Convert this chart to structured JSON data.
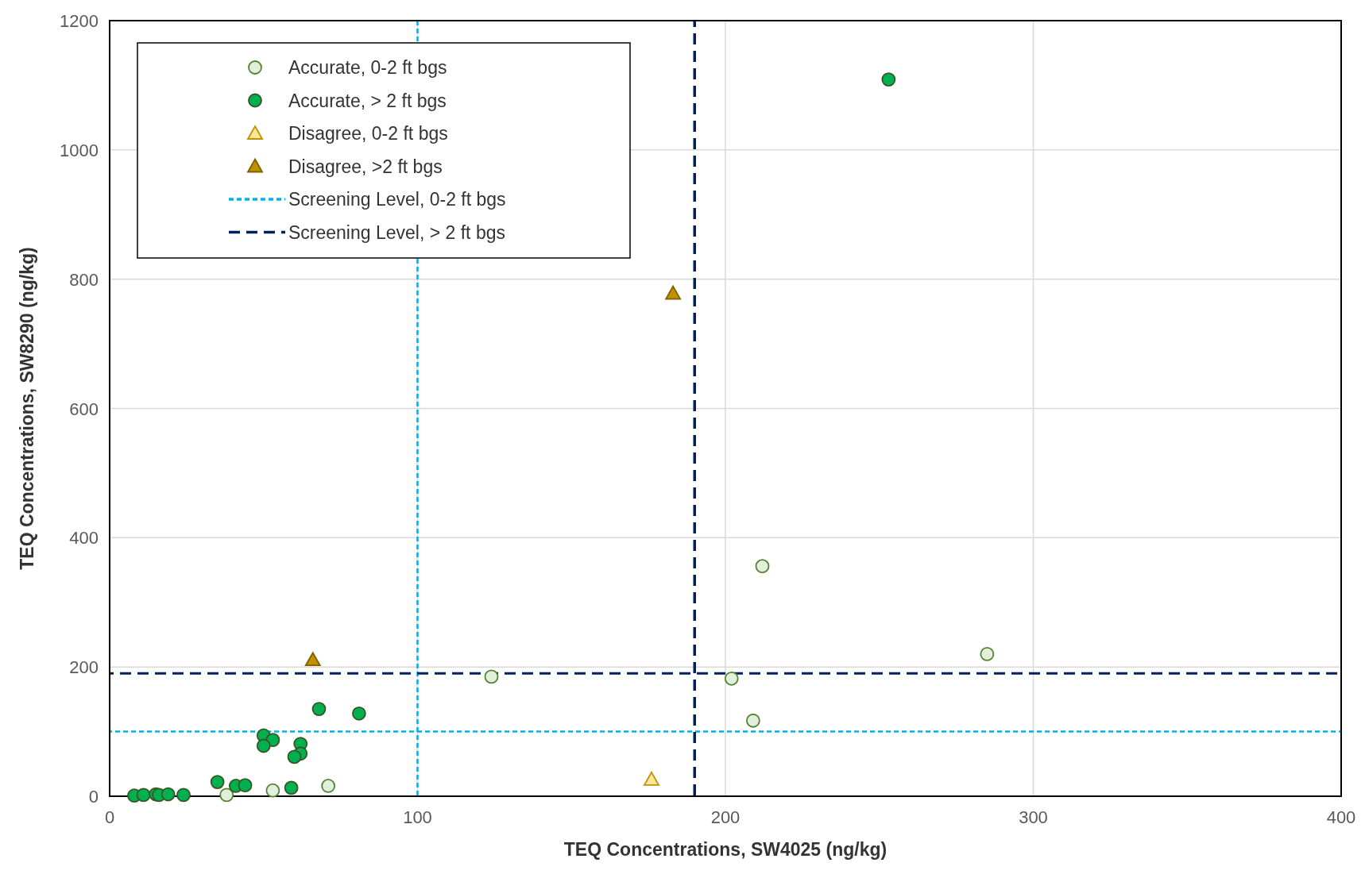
{
  "chart_data": {
    "type": "scatter",
    "xlabel": "TEQ Concentrations, SW4025 (ng/kg)",
    "ylabel": "TEQ Concentrations, SW8290 (ng/kg)",
    "xlim": [
      0,
      400
    ],
    "ylim": [
      0,
      1200
    ],
    "xticks": [
      0,
      100,
      200,
      300,
      400
    ],
    "yticks": [
      0,
      200,
      400,
      600,
      800,
      1000,
      1200
    ],
    "grid": true,
    "legend": "top left",
    "series": [
      {
        "name": "Accurate, 0-2 ft bgs",
        "color": "#e2efda",
        "marker": "circle",
        "x": [
          38,
          53,
          71,
          124,
          202,
          209,
          212,
          285
        ],
        "values": [
          2,
          9,
          16,
          185,
          182,
          117,
          356,
          220
        ]
      },
      {
        "name": "Accurate, > 2 ft bgs",
        "color": "#00b050",
        "marker": "circle",
        "x": [
          8,
          11,
          15,
          16,
          19,
          24,
          35,
          41,
          44,
          50,
          53,
          50,
          62,
          62,
          60,
          59,
          68,
          81,
          253
        ],
        "values": [
          1,
          2,
          3,
          2,
          3,
          2,
          22,
          16,
          17,
          94,
          87,
          78,
          81,
          66,
          61,
          13,
          135,
          128,
          1109
        ]
      },
      {
        "name": "Disagree, 0-2 ft bgs",
        "color": "#ffe699",
        "marker": "triangle",
        "x": [
          176
        ],
        "values": [
          26
        ]
      },
      {
        "name": "Disagree, >2 ft bgs",
        "color": "#bf9000",
        "marker": "triangle",
        "x": [
          66,
          183
        ],
        "values": [
          211,
          778
        ]
      }
    ],
    "ref_lines": [
      {
        "axis": "x",
        "value": 100,
        "color": "#00b0f0",
        "line_style": "dotted"
      },
      {
        "axis": "y",
        "value": 100,
        "label": "Screening Level, 0-2 ft bgs",
        "color": "#00b0f0",
        "line_style": "dotted"
      },
      {
        "axis": "x",
        "value": 190,
        "color": "#002060",
        "line_style": "dashed"
      },
      {
        "axis": "y",
        "value": 190,
        "label": "Screening Level, > 2 ft bgs",
        "color": "#002060",
        "line_style": "dashed"
      }
    ]
  }
}
